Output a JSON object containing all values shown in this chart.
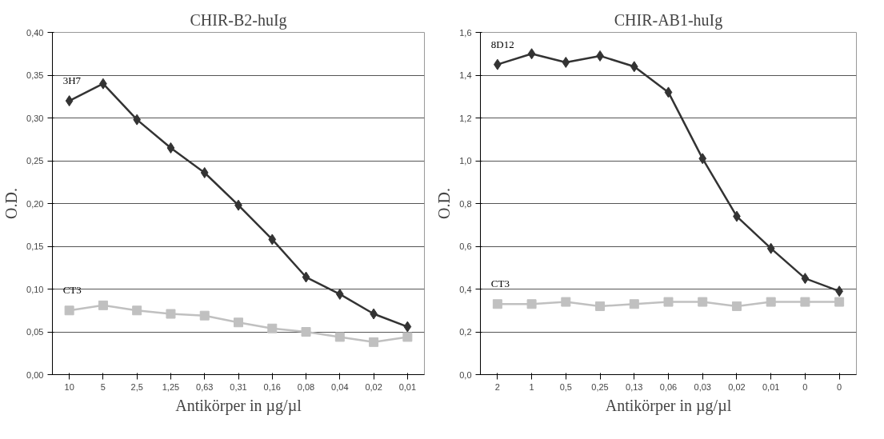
{
  "chart_data": [
    {
      "type": "line",
      "title": "CHIR-B2-huIg",
      "xlabel": "Antikörper in µg/µl",
      "ylabel": "O.D.",
      "categories": [
        "10",
        "5",
        "2,5",
        "1,25",
        "0,63",
        "0,31",
        "0,16",
        "0,08",
        "0,04",
        "0,02",
        "0,01"
      ],
      "series": [
        {
          "name": "3H7",
          "color": "#333333",
          "marker": "diamond",
          "values": [
            0.32,
            0.34,
            0.298,
            0.265,
            0.236,
            0.198,
            0.158,
            0.114,
            0.094,
            0.071,
            0.056
          ]
        },
        {
          "name": "CT3",
          "color": "#c0c0c0",
          "marker": "square",
          "values": [
            0.075,
            0.081,
            0.075,
            0.071,
            0.069,
            0.061,
            0.054,
            0.05,
            0.044,
            0.038,
            0.044
          ]
        }
      ],
      "ylim": [
        0,
        0.4
      ],
      "yticks": [
        {
          "value": 0,
          "label": "0,00"
        },
        {
          "value": 0.05,
          "label": "0,05"
        },
        {
          "value": 0.1,
          "label": "0,10"
        },
        {
          "value": 0.15,
          "label": "0,15"
        },
        {
          "value": 0.2,
          "label": "0,20"
        },
        {
          "value": 0.25,
          "label": "0,25"
        },
        {
          "value": 0.3,
          "label": "0,30"
        },
        {
          "value": 0.35,
          "label": "0,35"
        },
        {
          "value": 0.4,
          "label": "0,40"
        }
      ],
      "grid": "y"
    },
    {
      "type": "line",
      "title": "CHIR-AB1-huIg",
      "xlabel": "Antikörper in µg/µl",
      "ylabel": "O.D.",
      "categories": [
        "2",
        "1",
        "0,5",
        "0,25",
        "0,13",
        "0,06",
        "0,03",
        "0,02",
        "0,01",
        "0",
        "0"
      ],
      "series": [
        {
          "name": "8D12",
          "color": "#333333",
          "marker": "diamond",
          "values": [
            1.45,
            1.5,
            1.46,
            1.49,
            1.44,
            1.32,
            1.01,
            0.74,
            0.59,
            0.45,
            0.39
          ]
        },
        {
          "name": "CT3",
          "color": "#c0c0c0",
          "marker": "square",
          "values": [
            0.33,
            0.33,
            0.34,
            0.32,
            0.33,
            0.34,
            0.34,
            0.32,
            0.34,
            0.34,
            0.34
          ]
        }
      ],
      "ylim": [
        0,
        1.6
      ],
      "yticks": [
        {
          "value": 0,
          "label": "0,0"
        },
        {
          "value": 0.2,
          "label": "0,2"
        },
        {
          "value": 0.4,
          "label": "0,4"
        },
        {
          "value": 0.6,
          "label": "0,6"
        },
        {
          "value": 0.8,
          "label": "0,8"
        },
        {
          "value": 1.0,
          "label": "1,0"
        },
        {
          "value": 1.2,
          "label": "1,2"
        },
        {
          "value": 1.4,
          "label": "1,4"
        },
        {
          "value": 1.6,
          "label": "1,6"
        }
      ],
      "grid": "y"
    }
  ]
}
